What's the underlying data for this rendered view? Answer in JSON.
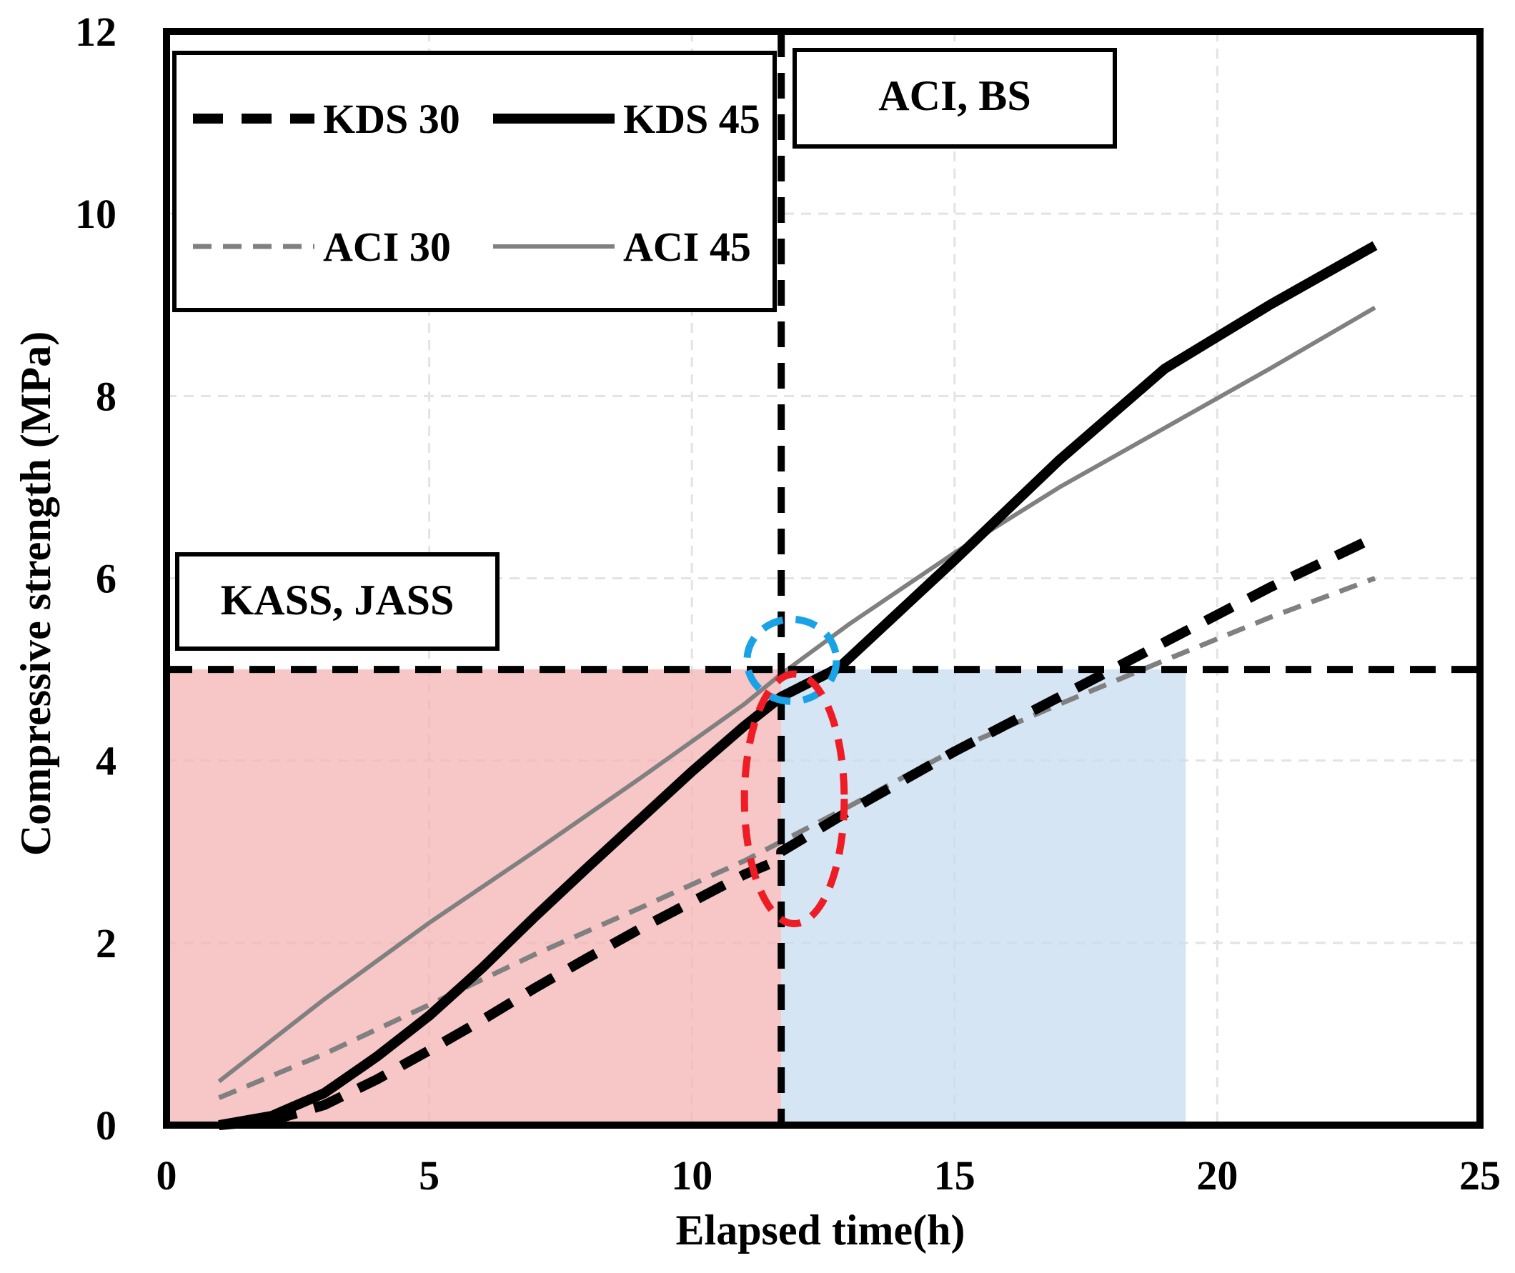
{
  "chart_data": {
    "type": "line",
    "xlabel": "Elapsed time(h)",
    "ylabel": "Compressive strength (MPa)",
    "xlim": [
      0,
      25
    ],
    "ylim": [
      0,
      12
    ],
    "xticks": [
      0,
      5,
      10,
      15,
      20,
      25
    ],
    "yticks": [
      0,
      2,
      4,
      6,
      8,
      10,
      12
    ],
    "grid": true,
    "legend_position": "top-left",
    "series": [
      {
        "name": "KDS 30",
        "style": "thick-dashed",
        "color": "#000000",
        "x": [
          1,
          2,
          3,
          4,
          5,
          6,
          7,
          8,
          9,
          10,
          11,
          11.7,
          11.7,
          13,
          15,
          17,
          19,
          21,
          23
        ],
        "y": [
          0.0,
          0.05,
          0.22,
          0.5,
          0.82,
          1.15,
          1.5,
          1.83,
          2.15,
          2.45,
          2.75,
          2.92,
          3.0,
          3.45,
          4.1,
          4.7,
          5.3,
          5.9,
          6.45
        ]
      },
      {
        "name": "KDS 45",
        "style": "thick-solid",
        "color": "#000000",
        "x": [
          1,
          2,
          3,
          4,
          5,
          6,
          7,
          8,
          9,
          10,
          11,
          11.7,
          12.8,
          15,
          17,
          19,
          21,
          23
        ],
        "y": [
          0.0,
          0.1,
          0.35,
          0.75,
          1.2,
          1.72,
          2.28,
          2.82,
          3.35,
          3.88,
          4.38,
          4.7,
          5.02,
          6.2,
          7.3,
          8.3,
          9.0,
          9.65
        ]
      },
      {
        "name": "ACI 30",
        "style": "thin-dashed",
        "color": "#808080",
        "x": [
          1,
          3,
          5,
          7,
          9,
          11,
          13,
          15,
          17,
          19,
          21,
          23
        ],
        "y": [
          0.3,
          0.78,
          1.32,
          1.87,
          2.38,
          2.9,
          3.5,
          4.12,
          4.62,
          5.1,
          5.57,
          6.0
        ]
      },
      {
        "name": "ACI 45",
        "style": "thin-solid",
        "color": "#808080",
        "x": [
          1,
          3,
          5,
          7,
          9,
          11,
          11.7,
          13,
          15,
          17,
          19,
          21,
          23
        ],
        "y": [
          0.48,
          1.38,
          2.22,
          3.0,
          3.8,
          4.62,
          4.95,
          5.5,
          6.28,
          7.0,
          7.65,
          8.3,
          8.97
        ]
      }
    ],
    "reference_lines": [
      {
        "orientation": "horizontal",
        "y": 5.0,
        "style": "dashed",
        "color": "#000000"
      },
      {
        "orientation": "vertical",
        "x": 11.7,
        "style": "dashed",
        "color": "#000000"
      }
    ],
    "shaded_regions": [
      {
        "x": [
          0,
          11.7
        ],
        "y": [
          0,
          5.0
        ],
        "color": "#f4b3b3"
      },
      {
        "x": [
          11.7,
          19.4
        ],
        "y": [
          0,
          5.0
        ],
        "color": "#c7dcf0"
      }
    ],
    "highlights": [
      {
        "shape": "ellipse",
        "center": [
          11.9,
          5.1
        ],
        "radius": [
          0.85,
          0.45
        ],
        "color": "#19a3e6",
        "style": "dashed"
      },
      {
        "shape": "ellipse",
        "center": [
          11.95,
          3.58
        ],
        "radius": [
          0.95,
          1.37
        ],
        "color": "#ee1c24",
        "style": "dashed"
      }
    ],
    "annotations": [
      {
        "text": "KASS, JASS",
        "anchor": "left-of-vertical-line"
      },
      {
        "text": "ACI, BS",
        "anchor": "right-of-vertical-line"
      }
    ]
  }
}
